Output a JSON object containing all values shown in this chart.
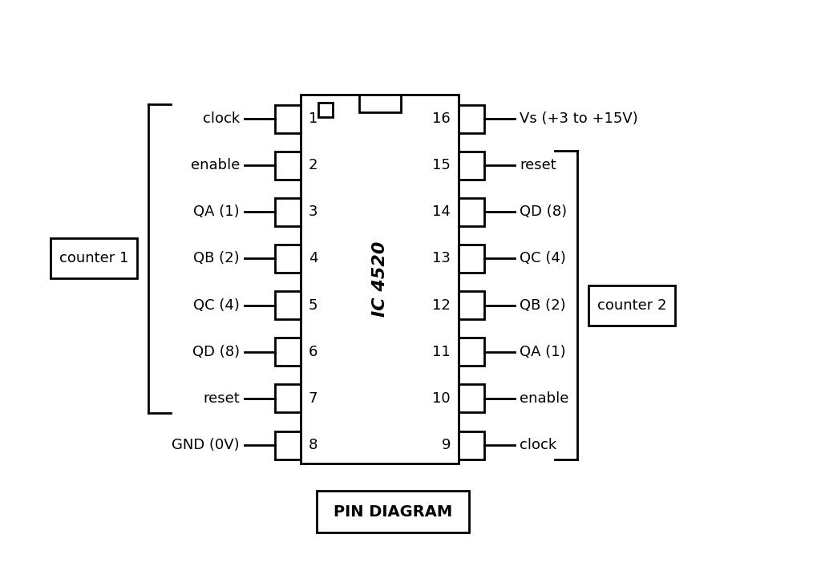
{
  "bg_color": "#ffffff",
  "ic_label": "IC 4520",
  "left_pins": [
    {
      "num": "1",
      "label": "clock"
    },
    {
      "num": "2",
      "label": "enable"
    },
    {
      "num": "3",
      "label": "QA (1)"
    },
    {
      "num": "4",
      "label": "QB (2)"
    },
    {
      "num": "5",
      "label": "QC (4)"
    },
    {
      "num": "6",
      "label": "QD (8)"
    },
    {
      "num": "7",
      "label": "reset"
    },
    {
      "num": "8",
      "label": "GND (0V)"
    }
  ],
  "right_pins": [
    {
      "num": "16",
      "label": "Vs (+3 to +15V)"
    },
    {
      "num": "15",
      "label": "reset"
    },
    {
      "num": "14",
      "label": "QD (8)"
    },
    {
      "num": "13",
      "label": "QC (4)"
    },
    {
      "num": "12",
      "label": "QB (2)"
    },
    {
      "num": "11",
      "label": "QA (1)"
    },
    {
      "num": "10",
      "label": "enable"
    },
    {
      "num": "9",
      "label": "clock"
    }
  ],
  "counter1_label": "counter 1",
  "counter2_label": "counter 2",
  "pin_diagram_label": "PIN DIAGRAM",
  "lw": 2.0,
  "font_size_pin": 13,
  "font_size_ic": 16,
  "font_size_counter": 13,
  "font_size_pd": 14
}
